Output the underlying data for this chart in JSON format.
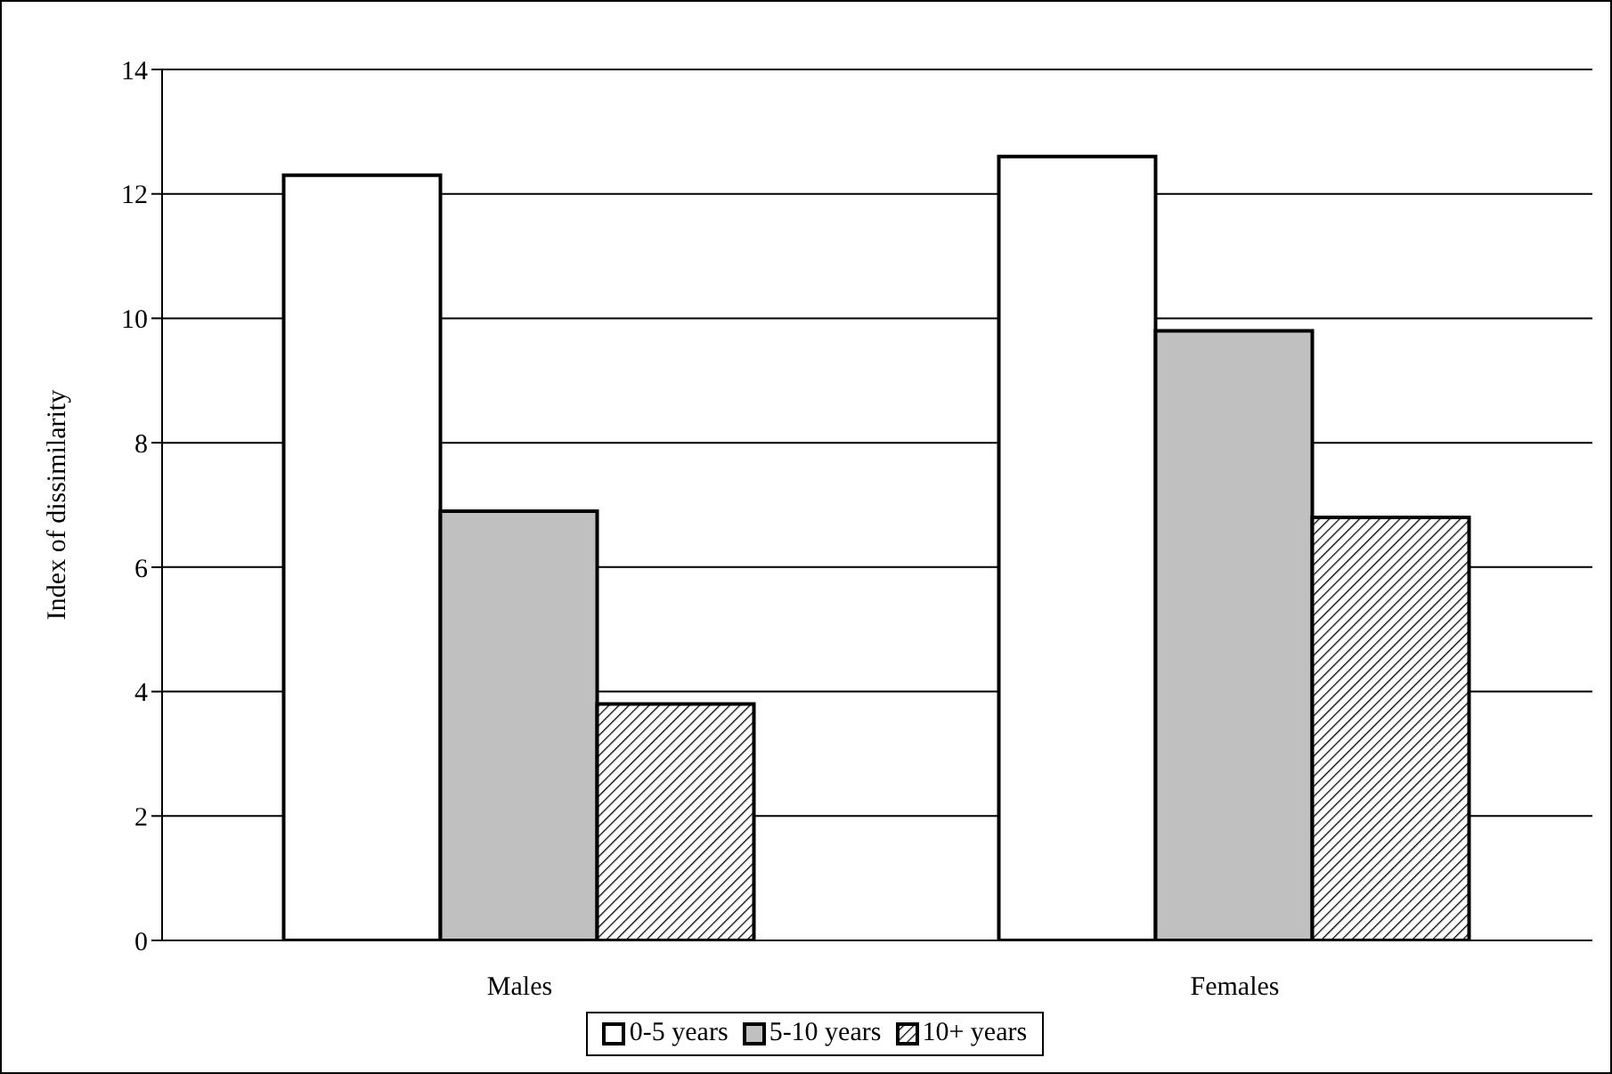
{
  "chart_data": {
    "type": "bar",
    "ylabel": "Index of dissimilarity",
    "categories": [
      "Males",
      "Females"
    ],
    "series": [
      {
        "name": "0-5 years",
        "color": "#ffffff",
        "values": [
          12.3,
          12.6
        ]
      },
      {
        "name": "5-10 years",
        "color": "#c0c0c0",
        "values": [
          6.9,
          9.8
        ]
      },
      {
        "name": "10+ years",
        "color": "#000000",
        "values": [
          3.8,
          6.8
        ]
      }
    ],
    "ylim": [
      0,
      14
    ],
    "yticks": [
      0,
      2,
      4,
      6,
      8,
      10,
      12,
      14
    ],
    "grid": "y",
    "legend": "bottom"
  }
}
